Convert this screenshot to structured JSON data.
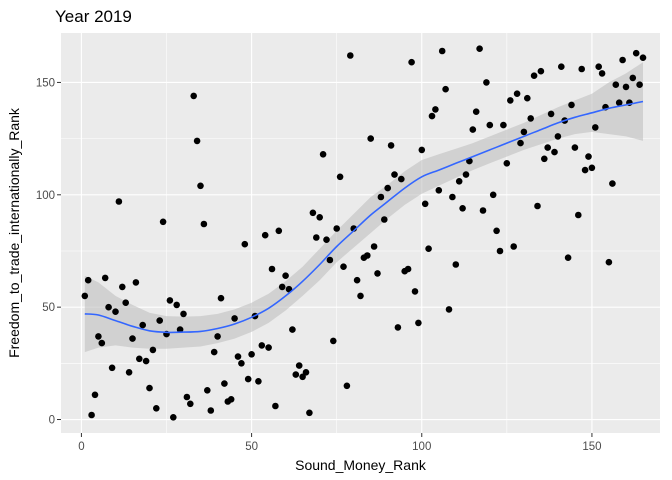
{
  "chart_data": {
    "type": "scatter",
    "title": "Year 2019",
    "xlabel": "Sound_Money_Rank",
    "ylabel": "Freedom_to_trade_internationally_Rank",
    "xlim": [
      -6,
      170
    ],
    "ylim": [
      -6,
      172
    ],
    "x_ticks": [
      0,
      50,
      100,
      150
    ],
    "y_ticks": [
      0,
      50,
      100,
      150
    ],
    "grid": true,
    "legend": "none",
    "colors": {
      "panel_background": "#ebebeb",
      "gridline": "#ffffff",
      "points": "#000000",
      "smooth_line": "#3366ff",
      "confidence_band": "#c0c0c0"
    },
    "points": [
      [
        1,
        55
      ],
      [
        2,
        62
      ],
      [
        3,
        2
      ],
      [
        4,
        11
      ],
      [
        5,
        37
      ],
      [
        6,
        34
      ],
      [
        7,
        63
      ],
      [
        8,
        50
      ],
      [
        9,
        23
      ],
      [
        10,
        48
      ],
      [
        11,
        97
      ],
      [
        12,
        59
      ],
      [
        13,
        52
      ],
      [
        14,
        21
      ],
      [
        15,
        36
      ],
      [
        16,
        61
      ],
      [
        17,
        27
      ],
      [
        18,
        42
      ],
      [
        19,
        26
      ],
      [
        20,
        14
      ],
      [
        21,
        31
      ],
      [
        22,
        5
      ],
      [
        23,
        44
      ],
      [
        24,
        88
      ],
      [
        25,
        38
      ],
      [
        26,
        53
      ],
      [
        27,
        1
      ],
      [
        28,
        51
      ],
      [
        29,
        40
      ],
      [
        30,
        47
      ],
      [
        31,
        10
      ],
      [
        32,
        7
      ],
      [
        33,
        144
      ],
      [
        34,
        124
      ],
      [
        35,
        104
      ],
      [
        36,
        87
      ],
      [
        37,
        13
      ],
      [
        38,
        4
      ],
      [
        39,
        30
      ],
      [
        40,
        37
      ],
      [
        41,
        54
      ],
      [
        42,
        16
      ],
      [
        43,
        8
      ],
      [
        44,
        9
      ],
      [
        45,
        45
      ],
      [
        46,
        28
      ],
      [
        47,
        25
      ],
      [
        48,
        78
      ],
      [
        49,
        18
      ],
      [
        50,
        29
      ],
      [
        51,
        46
      ],
      [
        52,
        17
      ],
      [
        53,
        33
      ],
      [
        54,
        82
      ],
      [
        55,
        32
      ],
      [
        56,
        67
      ],
      [
        57,
        6
      ],
      [
        58,
        84
      ],
      [
        59,
        59
      ],
      [
        60,
        64
      ],
      [
        61,
        58
      ],
      [
        62,
        40
      ],
      [
        63,
        20
      ],
      [
        64,
        24
      ],
      [
        65,
        19
      ],
      [
        66,
        21
      ],
      [
        67,
        3
      ],
      [
        68,
        92
      ],
      [
        69,
        81
      ],
      [
        70,
        90
      ],
      [
        71,
        118
      ],
      [
        72,
        80
      ],
      [
        73,
        71
      ],
      [
        74,
        35
      ],
      [
        75,
        85
      ],
      [
        76,
        108
      ],
      [
        77,
        68
      ],
      [
        78,
        15
      ],
      [
        79,
        162
      ],
      [
        80,
        85
      ],
      [
        81,
        62
      ],
      [
        82,
        55
      ],
      [
        83,
        72
      ],
      [
        84,
        73
      ],
      [
        85,
        125
      ],
      [
        86,
        77
      ],
      [
        87,
        65
      ],
      [
        88,
        99
      ],
      [
        89,
        89
      ],
      [
        90,
        103
      ],
      [
        91,
        122
      ],
      [
        92,
        109
      ],
      [
        93,
        41
      ],
      [
        94,
        107
      ],
      [
        95,
        66
      ],
      [
        96,
        67
      ],
      [
        97,
        159
      ],
      [
        98,
        57
      ],
      [
        99,
        43
      ],
      [
        100,
        120
      ],
      [
        101,
        96
      ],
      [
        102,
        76
      ],
      [
        103,
        135
      ],
      [
        104,
        138
      ],
      [
        105,
        102
      ],
      [
        106,
        164
      ],
      [
        107,
        147
      ],
      [
        108,
        49
      ],
      [
        109,
        99
      ],
      [
        110,
        69
      ],
      [
        111,
        106
      ],
      [
        112,
        94
      ],
      [
        113,
        109
      ],
      [
        114,
        115
      ],
      [
        115,
        129
      ],
      [
        116,
        137
      ],
      [
        117,
        165
      ],
      [
        118,
        93
      ],
      [
        119,
        150
      ],
      [
        120,
        131
      ],
      [
        121,
        100
      ],
      [
        122,
        84
      ],
      [
        123,
        75
      ],
      [
        124,
        131
      ],
      [
        125,
        114
      ],
      [
        126,
        142
      ],
      [
        127,
        77
      ],
      [
        128,
        145
      ],
      [
        129,
        123
      ],
      [
        130,
        128
      ],
      [
        131,
        143
      ],
      [
        132,
        134
      ],
      [
        133,
        153
      ],
      [
        134,
        95
      ],
      [
        135,
        155
      ],
      [
        136,
        116
      ],
      [
        137,
        121
      ],
      [
        138,
        136
      ],
      [
        139,
        119
      ],
      [
        140,
        126
      ],
      [
        141,
        157
      ],
      [
        142,
        133
      ],
      [
        143,
        72
      ],
      [
        144,
        140
      ],
      [
        145,
        121
      ],
      [
        146,
        91
      ],
      [
        147,
        156
      ],
      [
        148,
        111
      ],
      [
        149,
        117
      ],
      [
        150,
        112
      ],
      [
        151,
        130
      ],
      [
        152,
        157
      ],
      [
        153,
        154
      ],
      [
        154,
        139
      ],
      [
        155,
        70
      ],
      [
        156,
        105
      ],
      [
        157,
        149
      ],
      [
        158,
        141
      ],
      [
        159,
        160
      ],
      [
        160,
        148
      ],
      [
        161,
        141
      ],
      [
        162,
        152
      ],
      [
        163,
        163
      ],
      [
        164,
        149
      ],
      [
        165,
        161
      ]
    ],
    "smooth_fit": {
      "x": [
        1,
        5,
        10,
        15,
        20,
        25,
        30,
        35,
        40,
        45,
        50,
        55,
        60,
        65,
        70,
        75,
        80,
        85,
        90,
        95,
        100,
        105,
        110,
        115,
        120,
        125,
        130,
        135,
        140,
        145,
        150,
        155,
        160,
        165
      ],
      "y": [
        47,
        46.5,
        44,
        41.5,
        39.5,
        38.8,
        38.9,
        39.2,
        40.5,
        42.5,
        45.5,
        49.5,
        55,
        61.5,
        69,
        77,
        84,
        91,
        97,
        103,
        108,
        111,
        114,
        117,
        120,
        123,
        126,
        129,
        132,
        134.5,
        136.5,
        138.5,
        140,
        141.5
      ],
      "lower": [
        30,
        32,
        33,
        32,
        31.5,
        31.5,
        32,
        32.5,
        34,
        36,
        39,
        43,
        48.5,
        55,
        62,
        70,
        76.5,
        83,
        89.5,
        95.5,
        100.5,
        104,
        107.5,
        111,
        114,
        117,
        120,
        122.5,
        125,
        127,
        128,
        127,
        126,
        124
      ],
      "upper": [
        64,
        61,
        55,
        51,
        47.5,
        46,
        45.8,
        46,
        47,
        49,
        52,
        56,
        61.5,
        68,
        76,
        84,
        91.5,
        99,
        104.5,
        110.5,
        115.5,
        118,
        120.5,
        123,
        126,
        129,
        132,
        135.5,
        139,
        142,
        145,
        150,
        154,
        159
      ]
    }
  }
}
